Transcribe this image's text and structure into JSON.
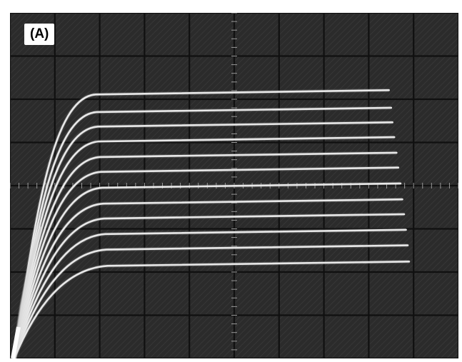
{
  "panel_label": "(A)",
  "display": {
    "graticule_columns": 10,
    "graticule_rows": 8,
    "background_color": "#2a2a2a",
    "grid_color": "#101010",
    "trace_color": "#e8e8e8"
  },
  "traces": {
    "count": 12,
    "levels_fraction_of_height": [
      0.232,
      0.283,
      0.325,
      0.368,
      0.413,
      0.456,
      0.502,
      0.548,
      0.591,
      0.636,
      0.681,
      0.728
    ],
    "end_fraction_of_width": [
      0.845,
      0.85,
      0.853,
      0.857,
      0.862,
      0.866,
      0.871,
      0.875,
      0.879,
      0.883,
      0.887,
      0.89
    ]
  }
}
